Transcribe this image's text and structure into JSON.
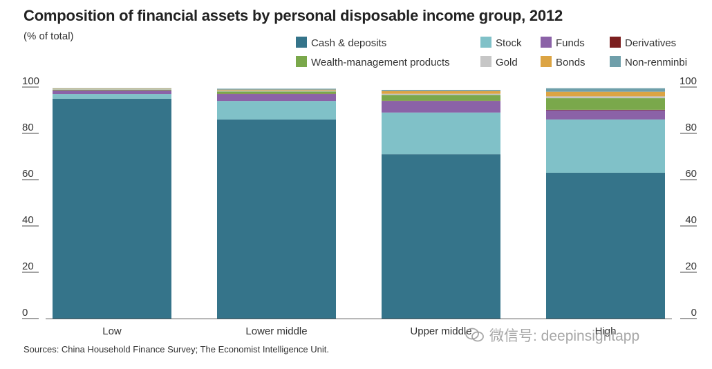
{
  "chart_data": {
    "type": "bar",
    "stacked": true,
    "title": "Composition of financial assets by personal disposable income group, 2012",
    "subtitle": "(% of total)",
    "categories": [
      "Low",
      "Lower middle",
      "Upper middle",
      "High"
    ],
    "ylim": [
      0,
      100
    ],
    "yticks": [
      0,
      20,
      40,
      60,
      80,
      100
    ],
    "ytick_labels": [
      "0",
      "20",
      "40",
      "60",
      "80",
      "100"
    ],
    "xlabel": "",
    "ylabel": "",
    "grid": false,
    "legend_position": "top",
    "series": [
      {
        "name": "Cash & deposits",
        "color": "#35748a",
        "values": [
          95,
          86,
          71,
          63
        ]
      },
      {
        "name": "Stock",
        "color": "#80c1c8",
        "values": [
          2,
          8,
          18,
          23
        ]
      },
      {
        "name": "Funds",
        "color": "#8b62a7",
        "values": [
          1.5,
          3,
          5,
          4
        ]
      },
      {
        "name": "Derivatives",
        "color": "#7c1f1f",
        "values": [
          0.1,
          0.1,
          0.1,
          0.2
        ]
      },
      {
        "name": "Wealth-management products",
        "color": "#7aa84b",
        "values": [
          0.3,
          1,
          2.5,
          5
        ]
      },
      {
        "name": "Gold",
        "color": "#c6c6c6",
        "values": [
          0.2,
          0.4,
          0.5,
          0.8
        ]
      },
      {
        "name": "Bonds",
        "color": "#dca443",
        "values": [
          0.2,
          0.4,
          1.2,
          2
        ]
      },
      {
        "name": "Non-renminbi",
        "color": "#6f9faa",
        "values": [
          0.2,
          0.4,
          0.5,
          1.5
        ]
      }
    ]
  },
  "source": "Sources: China Household Finance Survey; The Economist Intelligence Unit.",
  "watermark": "微信号: deepinsightapp"
}
